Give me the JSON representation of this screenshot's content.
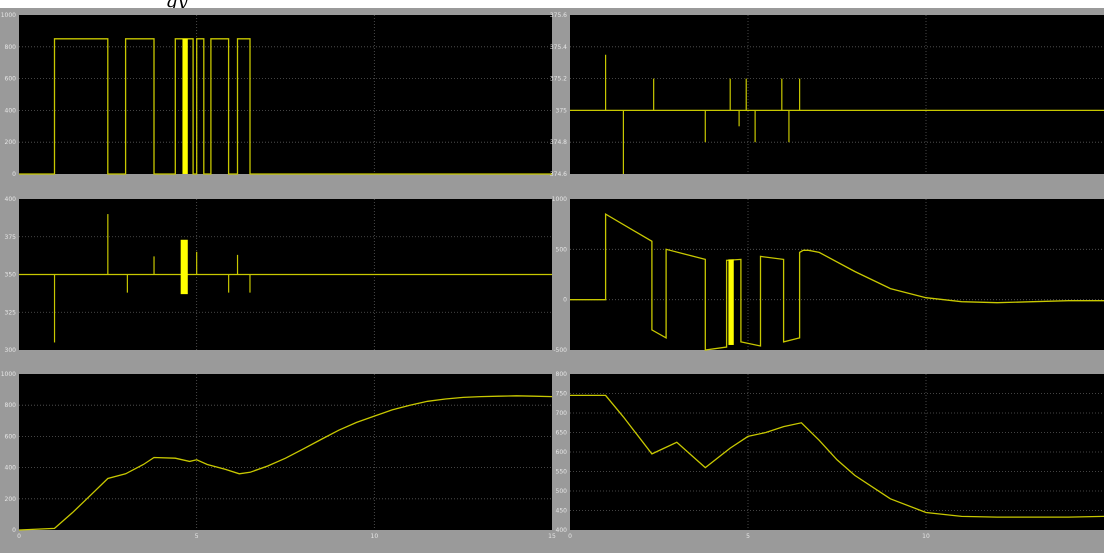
{
  "window": {
    "title_fragment": "gy"
  },
  "colors": {
    "background": "#9a9a9a",
    "plot_background": "#000000",
    "grid": "#5a5a5a",
    "trace": "#c8c800",
    "trace_bright": "#ffff00",
    "tick_text": "#e6e6e6"
  },
  "chart_data": [
    {
      "type": "line",
      "panel": "top-left",
      "xlim": [
        0,
        15
      ],
      "ylim": [
        0,
        1000
      ],
      "xticks": [],
      "yticks": [
        "0",
        "200",
        "400",
        "600",
        "800",
        "1000"
      ],
      "grid": true,
      "series": [
        {
          "x": [
            0,
            1,
            1,
            2.5,
            2.5,
            3,
            3,
            3.8,
            3.8,
            4.4,
            4.4,
            4.9,
            4.9,
            5,
            5,
            5.2,
            5.2,
            5.4,
            5.4,
            5.9,
            5.9,
            6.15,
            6.15,
            6.5,
            6.5,
            15
          ],
          "y": [
            0,
            0,
            850,
            850,
            0,
            0,
            850,
            850,
            0,
            0,
            850,
            850,
            0,
            0,
            850,
            850,
            0,
            0,
            850,
            850,
            0,
            0,
            850,
            850,
            0,
            0
          ]
        }
      ],
      "bursts": [
        {
          "x0": 4.6,
          "x1": 4.75,
          "y0": 0,
          "y1": 850
        }
      ]
    },
    {
      "type": "line",
      "panel": "top-right",
      "xlim": [
        0,
        15
      ],
      "ylim": [
        374.6,
        375.6
      ],
      "xticks": [],
      "yticks": [
        "374.6",
        "374.8",
        "375",
        "375.2",
        "375.4",
        "375.6"
      ],
      "grid": true,
      "series": [
        {
          "baseline": 375
        }
      ],
      "spikes": [
        {
          "x": 1,
          "y": 375.35
        },
        {
          "x": 1.5,
          "y": 374.6
        },
        {
          "x": 2.35,
          "y": 375.2
        },
        {
          "x": 3.8,
          "y": 374.8
        },
        {
          "x": 4.5,
          "y": 375.2
        },
        {
          "x": 4.75,
          "y": 374.9
        },
        {
          "x": 4.95,
          "y": 375.2
        },
        {
          "x": 5.2,
          "y": 374.8
        },
        {
          "x": 5.95,
          "y": 375.2
        },
        {
          "x": 6.15,
          "y": 374.8
        },
        {
          "x": 6.45,
          "y": 375.2
        }
      ]
    },
    {
      "type": "line",
      "panel": "middle-left",
      "xlim": [
        0,
        15
      ],
      "ylim": [
        300,
        400
      ],
      "xticks": [],
      "yticks": [
        "300",
        "325",
        "350",
        "375",
        "400"
      ],
      "grid": true,
      "series": [
        {
          "baseline": 350
        }
      ],
      "spikes": [
        {
          "x": 1,
          "y": 305
        },
        {
          "x": 2.5,
          "y": 390
        },
        {
          "x": 3.05,
          "y": 338
        },
        {
          "x": 3.8,
          "y": 362
        },
        {
          "x": 5,
          "y": 365
        },
        {
          "x": 5.9,
          "y": 338
        },
        {
          "x": 6.15,
          "y": 363
        },
        {
          "x": 6.5,
          "y": 338
        }
      ],
      "bursts": [
        {
          "x0": 4.55,
          "x1": 4.75,
          "y0": 337,
          "y1": 373
        }
      ]
    },
    {
      "type": "line",
      "panel": "middle-right",
      "xlim": [
        0,
        15
      ],
      "ylim": [
        -500,
        1000
      ],
      "xticks": [],
      "yticks": [
        "-500",
        "0",
        "500",
        "1000"
      ],
      "grid": true,
      "series": [
        {
          "x": [
            0,
            1,
            1,
            2.3,
            2.3,
            2.7,
            2.7,
            3.8,
            3.8,
            4.4,
            4.4,
            4.8,
            4.8,
            5.35,
            5.35,
            6,
            6,
            6.45,
            6.45,
            6.55,
            6.7,
            7,
            8,
            9,
            10,
            11,
            12,
            13,
            14,
            15
          ],
          "y": [
            0,
            0,
            850,
            580,
            -300,
            -380,
            500,
            400,
            -500,
            -470,
            390,
            400,
            -420,
            -460,
            430,
            400,
            -420,
            -380,
            470,
            490,
            490,
            470,
            280,
            110,
            20,
            -20,
            -30,
            -20,
            -10,
            -10
          ]
        }
      ],
      "bursts": [
        {
          "x0": 4.45,
          "x1": 4.6,
          "y0": -450,
          "y1": 400
        }
      ]
    },
    {
      "type": "line",
      "panel": "bottom-left",
      "xlim": [
        0,
        15
      ],
      "ylim": [
        0,
        1000
      ],
      "xticks": [
        "0",
        "5",
        "10",
        "15"
      ],
      "yticks": [
        "0",
        "200",
        "400",
        "600",
        "800",
        "1000"
      ],
      "grid": true,
      "series": [
        {
          "x": [
            0,
            1,
            1.5,
            2,
            2.5,
            3,
            3.5,
            3.8,
            4.4,
            4.8,
            5,
            5.3,
            5.8,
            6.2,
            6.5,
            7,
            7.5,
            8,
            8.5,
            9,
            9.5,
            10,
            10.5,
            11,
            11.5,
            12,
            12.5,
            13,
            13.5,
            14,
            14.5,
            15
          ],
          "y": [
            0,
            10,
            110,
            220,
            330,
            360,
            420,
            465,
            460,
            440,
            450,
            420,
            390,
            360,
            370,
            410,
            460,
            520,
            580,
            640,
            690,
            730,
            770,
            800,
            825,
            840,
            850,
            855,
            858,
            860,
            858,
            855
          ]
        }
      ]
    },
    {
      "type": "line",
      "panel": "bottom-right",
      "xlim": [
        0,
        15
      ],
      "ylim": [
        400,
        800
      ],
      "xticks": [
        "0",
        "5",
        "10"
      ],
      "yticks": [
        "400",
        "450",
        "500",
        "550",
        "600",
        "650",
        "700",
        "750",
        "800"
      ],
      "grid": true,
      "series": [
        {
          "x": [
            0,
            1,
            1.5,
            2.3,
            3,
            3.8,
            4.5,
            5,
            5.5,
            6,
            6.5,
            7,
            7.5,
            8,
            9,
            10,
            11,
            12,
            13,
            14,
            15
          ],
          "y": [
            745,
            745,
            690,
            595,
            625,
            560,
            610,
            640,
            650,
            665,
            675,
            630,
            580,
            540,
            480,
            445,
            435,
            433,
            433,
            433,
            435
          ]
        }
      ]
    }
  ]
}
